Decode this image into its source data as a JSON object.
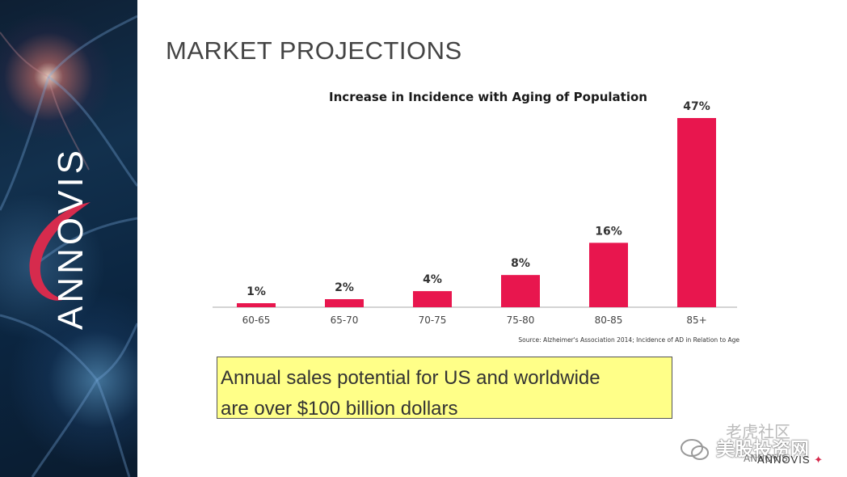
{
  "brand": {
    "logo_text": "ANNOVIS"
  },
  "slide": {
    "title": "MARKET PROJECTIONS"
  },
  "callout": {
    "line1": "Annual sales potential for US and worldwide",
    "line2": "are over $100 billion dollars"
  },
  "watermark": {
    "line1": "老虎社区",
    "line2": "美股投资网",
    "line3": "ANNOVIS"
  },
  "footer": {
    "logo_text": "ANNOVIS"
  },
  "colors": {
    "bar": "#e8164e",
    "panel": "#12304d",
    "callout_bg": "#ffff88",
    "logo_accent": "#d62b4d"
  },
  "chart_data": {
    "type": "bar",
    "title": "Increase in Incidence with Aging of Population",
    "categories": [
      "60-65",
      "65-70",
      "70-75",
      "75-80",
      "80-85",
      "85+"
    ],
    "values": [
      1,
      2,
      4,
      8,
      16,
      47
    ],
    "value_labels": [
      "1%",
      "2%",
      "4%",
      "8%",
      "16%",
      "47%"
    ],
    "source": "Source: Alzheimer's Association 2014; Incidence of AD in Relation to Age",
    "xlabel": "",
    "ylabel": "",
    "ylim": [
      0,
      47
    ],
    "grid": false,
    "legend": "none"
  }
}
